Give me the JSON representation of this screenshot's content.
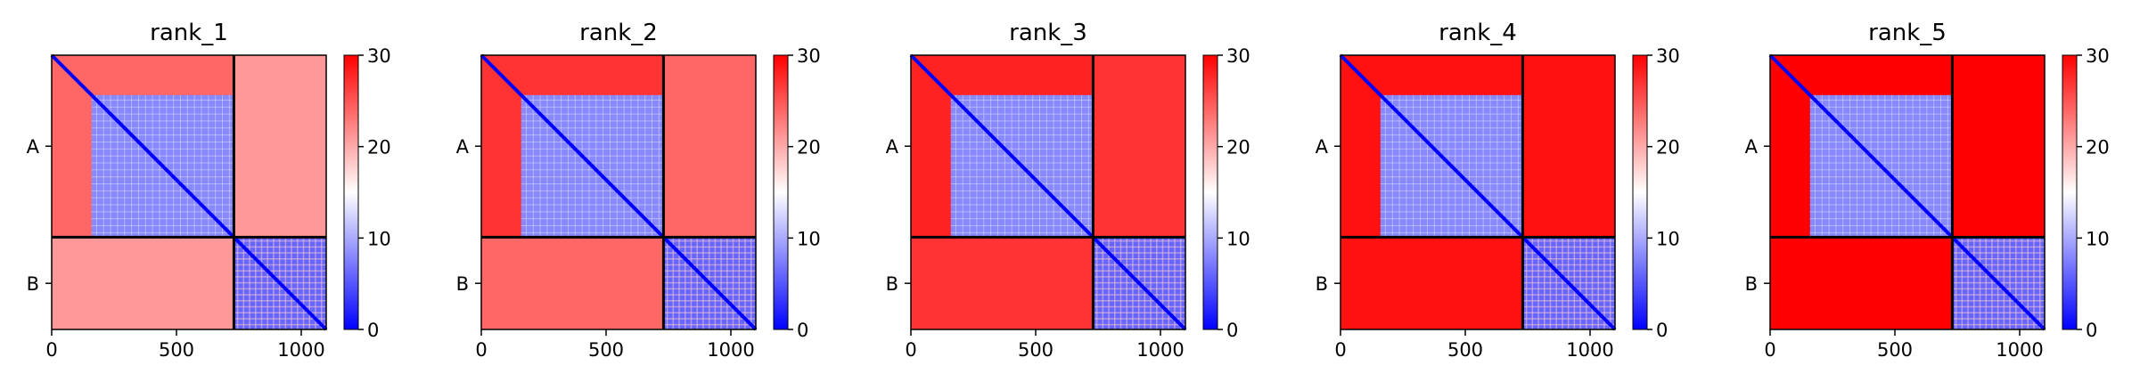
{
  "chart_data": [
    {
      "type": "heatmap",
      "title": "rank_1",
      "xlabel": "",
      "ylabel": "",
      "x_ticks": [
        "0",
        "500",
        "1000"
      ],
      "y_ticks": [
        "A",
        "B"
      ],
      "chains": [
        "A",
        "B"
      ],
      "chain_lengths": [
        730,
        370
      ],
      "xlim": [
        0,
        1100
      ],
      "colorbar": {
        "ticks": [
          "0",
          "10",
          "20",
          "30"
        ],
        "range": [
          0,
          30
        ],
        "colors": [
          "#0000ff",
          "#ffffff",
          "#ff0000"
        ]
      },
      "inter_chain_level": 21,
      "n_terminal_bad_level": 24
    },
    {
      "type": "heatmap",
      "title": "rank_2",
      "xlabel": "",
      "ylabel": "",
      "x_ticks": [
        "0",
        "500",
        "1000"
      ],
      "y_ticks": [
        "A",
        "B"
      ],
      "chains": [
        "A",
        "B"
      ],
      "chain_lengths": [
        730,
        370
      ],
      "xlim": [
        0,
        1100
      ],
      "colorbar": {
        "ticks": [
          "0",
          "10",
          "20",
          "30"
        ],
        "range": [
          0,
          30
        ],
        "colors": [
          "#0000ff",
          "#ffffff",
          "#ff0000"
        ]
      },
      "inter_chain_level": 24,
      "n_terminal_bad_level": 27
    },
    {
      "type": "heatmap",
      "title": "rank_3",
      "xlabel": "",
      "ylabel": "",
      "x_ticks": [
        "0",
        "500",
        "1000"
      ],
      "y_ticks": [
        "A",
        "B"
      ],
      "chains": [
        "A",
        "B"
      ],
      "chain_lengths": [
        730,
        370
      ],
      "xlim": [
        0,
        1100
      ],
      "colorbar": {
        "ticks": [
          "0",
          "10",
          "20",
          "30"
        ],
        "range": [
          0,
          30
        ],
        "colors": [
          "#0000ff",
          "#ffffff",
          "#ff0000"
        ]
      },
      "inter_chain_level": 27,
      "n_terminal_bad_level": 28
    },
    {
      "type": "heatmap",
      "title": "rank_4",
      "xlabel": "",
      "ylabel": "",
      "x_ticks": [
        "0",
        "500",
        "1000"
      ],
      "y_ticks": [
        "A",
        "B"
      ],
      "chains": [
        "A",
        "B"
      ],
      "chain_lengths": [
        730,
        370
      ],
      "xlim": [
        0,
        1100
      ],
      "colorbar": {
        "ticks": [
          "0",
          "10",
          "20",
          "30"
        ],
        "range": [
          0,
          30
        ],
        "colors": [
          "#0000ff",
          "#ffffff",
          "#ff0000"
        ]
      },
      "inter_chain_level": 29,
      "n_terminal_bad_level": 29
    },
    {
      "type": "heatmap",
      "title": "rank_5",
      "xlabel": "",
      "ylabel": "",
      "x_ticks": [
        "0",
        "500",
        "1000"
      ],
      "y_ticks": [
        "A",
        "B"
      ],
      "chains": [
        "A",
        "B"
      ],
      "chain_lengths": [
        730,
        370
      ],
      "xlim": [
        0,
        1100
      ],
      "colorbar": {
        "ticks": [
          "0",
          "10",
          "20",
          "30"
        ],
        "range": [
          0,
          30
        ],
        "colors": [
          "#0000ff",
          "#ffffff",
          "#ff0000"
        ]
      },
      "inter_chain_level": 30,
      "n_terminal_bad_level": 30
    }
  ]
}
